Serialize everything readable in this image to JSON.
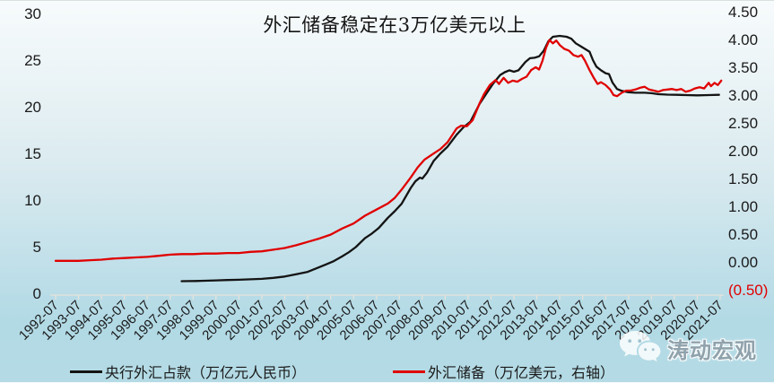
{
  "chart_data": {
    "type": "line",
    "title": "外汇储备稳定在3万亿美元以上",
    "watermark": "涛动宏观",
    "legend": [
      {
        "label": "央行外汇占款（万亿元人民币）",
        "color": "#141414"
      },
      {
        "label": "外汇储备（万亿美元，右轴）",
        "color": "#e00000"
      }
    ],
    "left_axis": {
      "range": [
        0,
        30
      ],
      "ticks": [
        {
          "v": 0,
          "label": "0"
        },
        {
          "v": 5,
          "label": "5"
        },
        {
          "v": 10,
          "label": "10"
        },
        {
          "v": 15,
          "label": "15"
        },
        {
          "v": 20,
          "label": "20"
        },
        {
          "v": 25,
          "label": "25"
        },
        {
          "v": 30,
          "label": "30"
        }
      ]
    },
    "right_axis": {
      "range": [
        -0.5,
        4.5
      ],
      "ticks": [
        {
          "v": 4.5,
          "label": "4.50"
        },
        {
          "v": 4.0,
          "label": "4.00"
        },
        {
          "v": 3.5,
          "label": "3.50"
        },
        {
          "v": 3.0,
          "label": "3.00"
        },
        {
          "v": 2.5,
          "label": "2.50"
        },
        {
          "v": 2.0,
          "label": "2.00"
        },
        {
          "v": 1.5,
          "label": "1.50"
        },
        {
          "v": 1.0,
          "label": "1.00"
        },
        {
          "v": 0.5,
          "label": "0.50"
        },
        {
          "v": 0.0,
          "label": "0.00"
        },
        {
          "v": -0.5,
          "label": "(0.50)",
          "negative": true
        }
      ]
    },
    "x_axis": {
      "labels": [
        "1992-07",
        "1993-07",
        "1994-07",
        "1995-07",
        "1996-07",
        "1997-07",
        "1998-07",
        "1999-07",
        "2000-07",
        "2001-07",
        "2002-07",
        "2003-07",
        "2004-07",
        "2005-07",
        "2006-07",
        "2007-07",
        "2008-07",
        "2009-07",
        "2010-07",
        "2011-07",
        "2012-07",
        "2013-07",
        "2014-07",
        "2015-07",
        "2016-07",
        "2017-07",
        "2018-07",
        "2019-07",
        "2020-07",
        "2021-07"
      ]
    },
    "series": [
      {
        "name": "央行外汇占款（万亿元人民币）",
        "axis": "left",
        "color": "#141414",
        "points": [
          [
            1998.0,
            1.3
          ],
          [
            1998.3,
            1.31
          ],
          [
            1998.6,
            1.32
          ],
          [
            1999.0,
            1.35
          ],
          [
            1999.5,
            1.38
          ],
          [
            2000.0,
            1.42
          ],
          [
            2000.5,
            1.45
          ],
          [
            2001.0,
            1.5
          ],
          [
            2001.5,
            1.55
          ],
          [
            2002.0,
            1.65
          ],
          [
            2002.5,
            1.8
          ],
          [
            2003.0,
            2.05
          ],
          [
            2003.5,
            2.3
          ],
          [
            2004.0,
            2.8
          ],
          [
            2004.3,
            3.1
          ],
          [
            2004.6,
            3.4
          ],
          [
            2005.0,
            3.95
          ],
          [
            2005.3,
            4.4
          ],
          [
            2005.6,
            4.95
          ],
          [
            2006.0,
            5.9
          ],
          [
            2006.3,
            6.4
          ],
          [
            2006.6,
            7.0
          ],
          [
            2007.0,
            8.1
          ],
          [
            2007.3,
            8.8
          ],
          [
            2007.6,
            9.6
          ],
          [
            2008.0,
            11.3
          ],
          [
            2008.2,
            12.0
          ],
          [
            2008.4,
            12.4
          ],
          [
            2008.5,
            12.3
          ],
          [
            2008.7,
            12.9
          ],
          [
            2009.0,
            14.2
          ],
          [
            2009.3,
            15.0
          ],
          [
            2009.6,
            15.7
          ],
          [
            2010.0,
            17.0
          ],
          [
            2010.3,
            17.8
          ],
          [
            2010.6,
            18.4
          ],
          [
            2011.0,
            20.3
          ],
          [
            2011.3,
            21.4
          ],
          [
            2011.6,
            22.5
          ],
          [
            2011.9,
            23.4
          ],
          [
            2012.1,
            23.7
          ],
          [
            2012.3,
            23.9
          ],
          [
            2012.5,
            23.75
          ],
          [
            2012.7,
            23.9
          ],
          [
            2013.0,
            24.8
          ],
          [
            2013.2,
            25.2
          ],
          [
            2013.4,
            25.25
          ],
          [
            2013.6,
            25.4
          ],
          [
            2013.8,
            26.0
          ],
          [
            2014.0,
            27.0
          ],
          [
            2014.2,
            27.5
          ],
          [
            2014.5,
            27.6
          ],
          [
            2014.8,
            27.5
          ],
          [
            2015.0,
            27.3
          ],
          [
            2015.2,
            26.8
          ],
          [
            2015.4,
            26.5
          ],
          [
            2015.6,
            26.2
          ],
          [
            2015.8,
            25.9
          ],
          [
            2015.95,
            25.0
          ],
          [
            2016.1,
            24.3
          ],
          [
            2016.3,
            23.9
          ],
          [
            2016.5,
            23.6
          ],
          [
            2016.65,
            23.5
          ],
          [
            2016.8,
            22.6
          ],
          [
            2017.0,
            21.9
          ],
          [
            2017.2,
            21.7
          ],
          [
            2017.5,
            21.55
          ],
          [
            2017.8,
            21.5
          ],
          [
            2018.2,
            21.5
          ],
          [
            2018.5,
            21.45
          ],
          [
            2018.8,
            21.35
          ],
          [
            2019.2,
            21.3
          ],
          [
            2019.6,
            21.28
          ],
          [
            2020.0,
            21.25
          ],
          [
            2020.5,
            21.22
          ],
          [
            2021.0,
            21.25
          ],
          [
            2021.45,
            21.28
          ]
        ]
      },
      {
        "name": "外汇储备（万亿美元，右轴）",
        "axis": "right",
        "color": "#e00000",
        "points": [
          [
            1992.5,
            0.02
          ],
          [
            1993.0,
            0.02
          ],
          [
            1993.5,
            0.02
          ],
          [
            1994.0,
            0.03
          ],
          [
            1994.5,
            0.04
          ],
          [
            1995.0,
            0.06
          ],
          [
            1995.5,
            0.07
          ],
          [
            1996.0,
            0.08
          ],
          [
            1996.5,
            0.09
          ],
          [
            1997.0,
            0.11
          ],
          [
            1997.5,
            0.13
          ],
          [
            1998.0,
            0.14
          ],
          [
            1998.5,
            0.14
          ],
          [
            1999.0,
            0.15
          ],
          [
            1999.5,
            0.15
          ],
          [
            2000.0,
            0.16
          ],
          [
            2000.5,
            0.16
          ],
          [
            2001.0,
            0.18
          ],
          [
            2001.5,
            0.19
          ],
          [
            2002.0,
            0.22
          ],
          [
            2002.5,
            0.25
          ],
          [
            2003.0,
            0.3
          ],
          [
            2003.5,
            0.36
          ],
          [
            2004.0,
            0.42
          ],
          [
            2004.5,
            0.49
          ],
          [
            2005.0,
            0.6
          ],
          [
            2005.5,
            0.69
          ],
          [
            2006.0,
            0.83
          ],
          [
            2006.5,
            0.94
          ],
          [
            2007.0,
            1.05
          ],
          [
            2007.3,
            1.15
          ],
          [
            2007.6,
            1.3
          ],
          [
            2008.0,
            1.52
          ],
          [
            2008.3,
            1.7
          ],
          [
            2008.6,
            1.84
          ],
          [
            2009.0,
            1.95
          ],
          [
            2009.3,
            2.03
          ],
          [
            2009.6,
            2.15
          ],
          [
            2010.0,
            2.4
          ],
          [
            2010.2,
            2.45
          ],
          [
            2010.45,
            2.44
          ],
          [
            2010.7,
            2.55
          ],
          [
            2011.0,
            2.85
          ],
          [
            2011.2,
            3.02
          ],
          [
            2011.45,
            3.18
          ],
          [
            2011.7,
            3.27
          ],
          [
            2011.85,
            3.2
          ],
          [
            2012.05,
            3.31
          ],
          [
            2012.25,
            3.22
          ],
          [
            2012.45,
            3.26
          ],
          [
            2012.65,
            3.24
          ],
          [
            2012.85,
            3.29
          ],
          [
            2013.05,
            3.33
          ],
          [
            2013.25,
            3.45
          ],
          [
            2013.45,
            3.5
          ],
          [
            2013.6,
            3.46
          ],
          [
            2013.75,
            3.62
          ],
          [
            2013.9,
            3.85
          ],
          [
            2014.05,
            3.99
          ],
          [
            2014.2,
            3.93
          ],
          [
            2014.35,
            3.98
          ],
          [
            2014.5,
            3.9
          ],
          [
            2014.7,
            3.83
          ],
          [
            2014.9,
            3.8
          ],
          [
            2015.1,
            3.72
          ],
          [
            2015.3,
            3.69
          ],
          [
            2015.45,
            3.72
          ],
          [
            2015.6,
            3.62
          ],
          [
            2015.8,
            3.45
          ],
          [
            2016.0,
            3.3
          ],
          [
            2016.15,
            3.2
          ],
          [
            2016.3,
            3.23
          ],
          [
            2016.5,
            3.18
          ],
          [
            2016.7,
            3.1
          ],
          [
            2016.85,
            3.0
          ],
          [
            2017.0,
            2.98
          ],
          [
            2017.2,
            3.04
          ],
          [
            2017.4,
            3.08
          ],
          [
            2017.6,
            3.08
          ],
          [
            2017.8,
            3.1
          ],
          [
            2018.0,
            3.13
          ],
          [
            2018.2,
            3.15
          ],
          [
            2018.4,
            3.1
          ],
          [
            2018.6,
            3.08
          ],
          [
            2018.8,
            3.06
          ],
          [
            2019.0,
            3.09
          ],
          [
            2019.2,
            3.1
          ],
          [
            2019.4,
            3.11
          ],
          [
            2019.6,
            3.09
          ],
          [
            2019.8,
            3.11
          ],
          [
            2020.0,
            3.06
          ],
          [
            2020.2,
            3.08
          ],
          [
            2020.4,
            3.12
          ],
          [
            2020.6,
            3.14
          ],
          [
            2020.8,
            3.12
          ],
          [
            2021.0,
            3.22
          ],
          [
            2021.1,
            3.16
          ],
          [
            2021.25,
            3.22
          ],
          [
            2021.4,
            3.18
          ],
          [
            2021.55,
            3.26
          ]
        ]
      }
    ],
    "layout_hints": {
      "legend_position": "bottom",
      "grid": "off",
      "x_label_rotation": -45,
      "axis_line_color": "#e8e3da",
      "background_top": "#f7fbfc",
      "background_bottom": "#b2dae5"
    }
  }
}
